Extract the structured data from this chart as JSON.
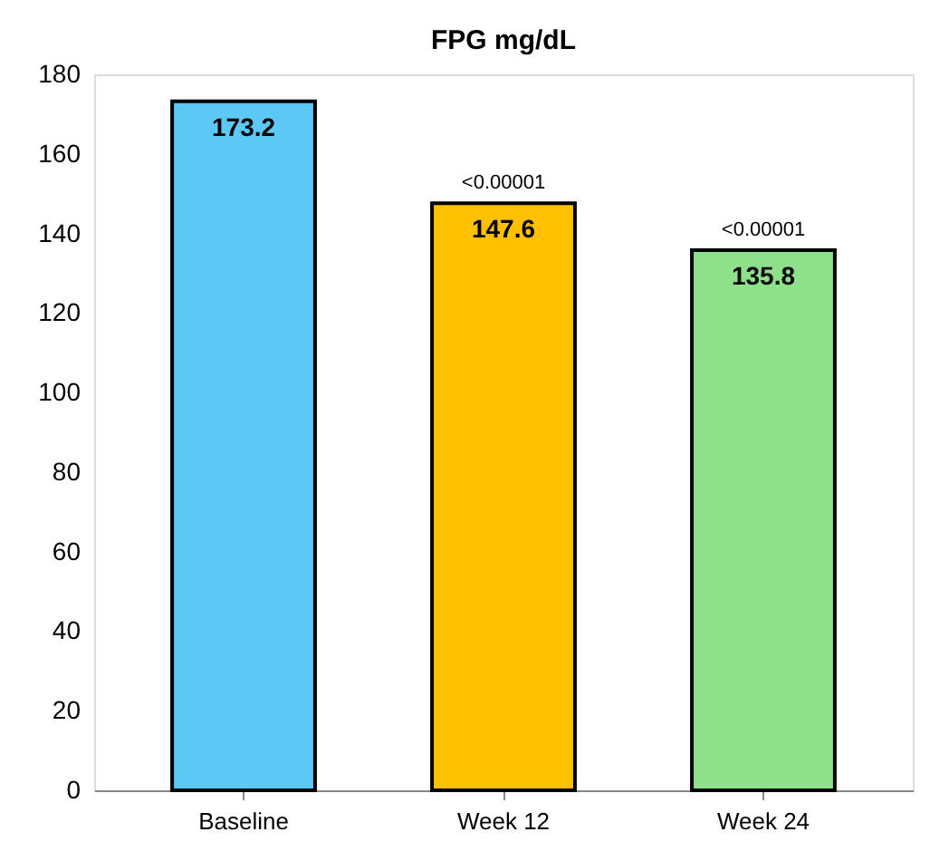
{
  "chart_data": {
    "type": "bar",
    "title": "FPG mg/dL",
    "categories": [
      "Baseline",
      "Week 12",
      "Week 24"
    ],
    "values": [
      173.2,
      147.6,
      135.8
    ],
    "colors": [
      "#5bc8f5",
      "#ffc000",
      "#8ee08a"
    ],
    "ylim": [
      0,
      180
    ],
    "yticks": [
      0,
      20,
      40,
      60,
      80,
      100,
      120,
      140,
      160,
      180
    ],
    "data_labels": true,
    "grid": false,
    "annotations": [
      {
        "text": "<0.00001",
        "x": "Week 12",
        "y": 147.6
      },
      {
        "text": "<0.00001",
        "x": "Week 24",
        "y": 135.8
      }
    ]
  }
}
